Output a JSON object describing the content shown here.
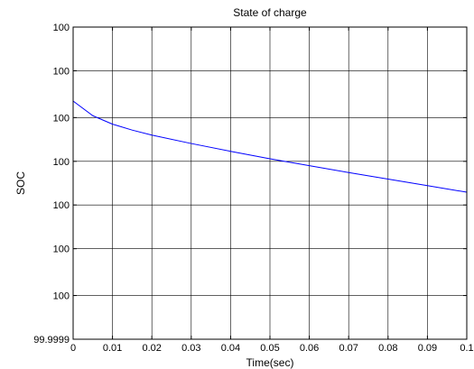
{
  "chart_data": {
    "type": "line",
    "title": "State of charge",
    "xlabel": "Time(sec)",
    "ylabel": "SOC",
    "xlim": [
      0,
      0.1
    ],
    "ylim": [
      99.9999,
      100.0
    ],
    "grid": true,
    "x_ticks": [
      0,
      0.01,
      0.02,
      0.03,
      0.04,
      0.05,
      0.06,
      0.07,
      0.08,
      0.09,
      0.1
    ],
    "x_tick_labels": [
      "0",
      "0.01",
      "0.02",
      "0.03",
      "0.04",
      "0.05",
      "0.06",
      "0.07",
      "0.08",
      "0.09",
      "0.1"
    ],
    "y_ticks": [
      99.9999,
      99.999914,
      99.999929,
      99.999943,
      99.999957,
      99.999971,
      99.999986,
      100.0
    ],
    "y_tick_labels": [
      "99.9999",
      "100",
      "100",
      "100",
      "100",
      "100",
      "100",
      "100"
    ],
    "series": [
      {
        "color": "#0000ff",
        "x": [
          0,
          0.005,
          0.01,
          0.015,
          0.02,
          0.03,
          0.04,
          0.05,
          0.06,
          0.07,
          0.08,
          0.09,
          0.1
        ],
        "y": [
          99.9999763,
          99.9999716,
          99.9999689,
          99.999967,
          99.9999654,
          99.9999627,
          99.9999602,
          99.9999578,
          99.9999556,
          99.9999534,
          99.9999513,
          99.9999492,
          99.9999471
        ]
      }
    ]
  }
}
